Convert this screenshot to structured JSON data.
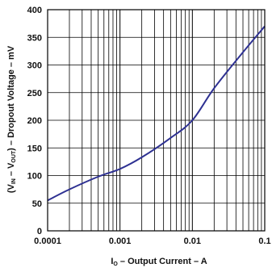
{
  "chart_data": {
    "type": "line",
    "x_scale": "log",
    "xlim": [
      0.0001,
      0.1
    ],
    "ylim": [
      0,
      400
    ],
    "grid": true,
    "x_ticks": [
      "0.0001",
      "0.001",
      "0.01",
      "0.1"
    ],
    "y_ticks": [
      "0",
      "50",
      "100",
      "150",
      "200",
      "250",
      "300",
      "350",
      "400"
    ],
    "xlabel": {
      "main": "I",
      "sub": "O",
      "rest": " – Output Current – A"
    },
    "ylabel": {
      "p1": "(V",
      "sub1": "IN",
      "p2": " – V",
      "sub2": "OUT",
      "p3": ") – Dropout Voltage – mV"
    },
    "series": [
      {
        "color": "#2e3192",
        "x": [
          0.0001,
          0.0002,
          0.0005,
          0.001,
          0.002,
          0.005,
          0.01,
          0.02,
          0.05,
          0.1
        ],
        "y": [
          55,
          75,
          98,
          112,
          133,
          168,
          200,
          258,
          323,
          370
        ]
      }
    ]
  }
}
